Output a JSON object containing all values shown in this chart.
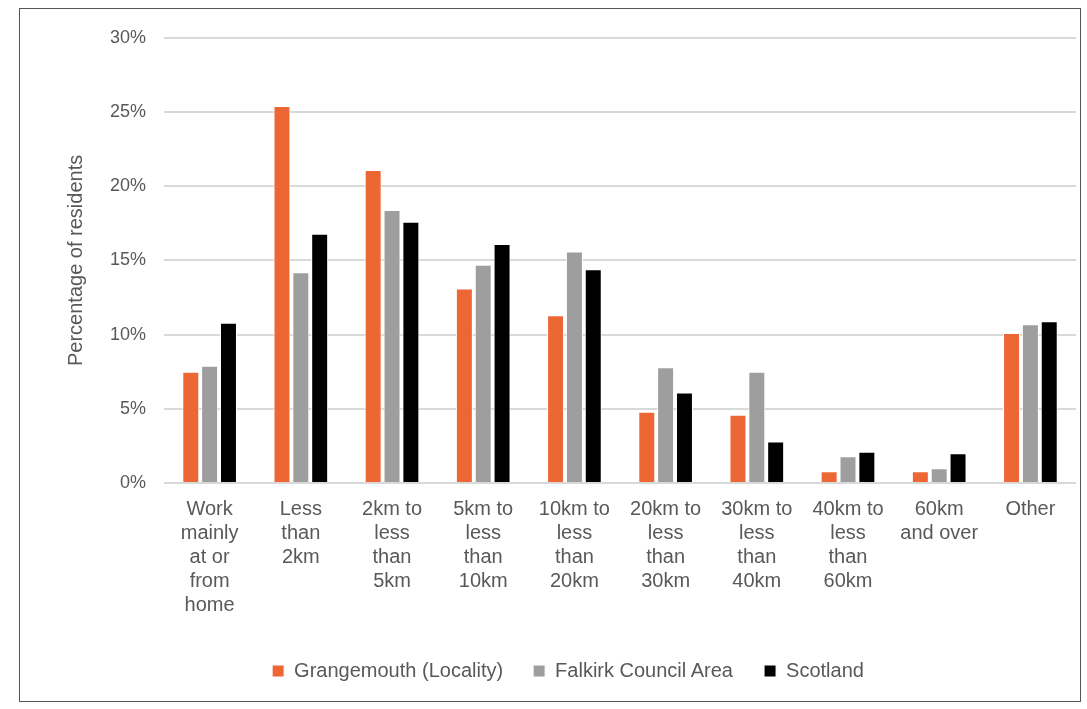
{
  "chart_data": {
    "type": "bar",
    "ylabel": "Percentage of residents",
    "categories": [
      "Work\nmainly\nat or\nfrom\nhome",
      "Less\nthan\n2km",
      "2km to\nless\nthan\n5km",
      "5km to\nless\nthan\n10km",
      "10km to\nless\nthan\n20km",
      "20km to\nless\nthan\n30km",
      "30km to\nless\nthan\n40km",
      "40km to\nless\nthan\n60km",
      "60km\nand over",
      "Other"
    ],
    "series": [
      {
        "name": "Grangemouth (Locality)",
        "color": "#ed6735",
        "values": [
          7.5,
          25.4,
          21.1,
          13.1,
          11.3,
          4.8,
          4.6,
          0.8,
          0.8,
          10.1
        ]
      },
      {
        "name": "Falkirk Council Area",
        "color": "#9e9e9e",
        "values": [
          7.9,
          14.2,
          18.4,
          14.7,
          15.6,
          7.8,
          7.5,
          1.8,
          1.0,
          10.7
        ]
      },
      {
        "name": "Scotland",
        "color": "#000000",
        "values": [
          10.8,
          16.8,
          17.6,
          16.1,
          14.4,
          6.1,
          2.8,
          2.1,
          2.0,
          10.9
        ]
      }
    ],
    "ylim": [
      0,
      30
    ],
    "yticks": [
      {
        "value": 0,
        "label": "0%"
      },
      {
        "value": 5,
        "label": "5%"
      },
      {
        "value": 10,
        "label": "10%"
      },
      {
        "value": 15,
        "label": "15%"
      },
      {
        "value": 20,
        "label": "20%"
      },
      {
        "value": 25,
        "label": "25%"
      },
      {
        "value": 30,
        "label": "30%"
      }
    ],
    "grid": "y",
    "legend": "bottom"
  }
}
